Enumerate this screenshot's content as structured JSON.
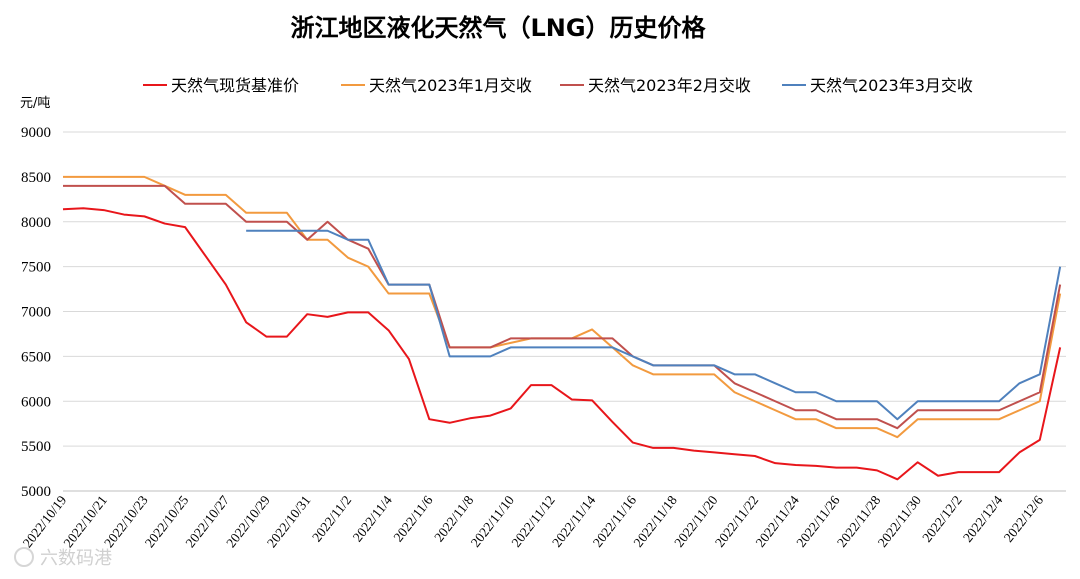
{
  "chart_data": {
    "type": "line",
    "title": "浙江地区液化天然气（LNG）历史价格",
    "unit_label": "元/吨",
    "ylim": [
      5000,
      9000
    ],
    "y_ticks": [
      5000,
      5500,
      6000,
      6500,
      7000,
      7500,
      8000,
      8500,
      9000
    ],
    "legend_position": "top",
    "grid": true,
    "x_tick_labels": [
      "2022/10/19",
      "2022/10/21",
      "2022/10/23",
      "2022/10/25",
      "2022/10/27",
      "2022/10/29",
      "2022/10/31",
      "2022/11/2",
      "2022/11/4",
      "2022/11/6",
      "2022/11/8",
      "2022/11/10",
      "2022/11/12",
      "2022/11/14",
      "2022/11/16",
      "2022/11/18",
      "2022/11/20",
      "2022/11/22",
      "2022/11/24",
      "2022/11/26",
      "2022/11/28",
      "2022/11/30",
      "2022/12/2",
      "2022/12/4",
      "2022/12/6"
    ],
    "x": [
      "2022/10/19",
      "2022/10/20",
      "2022/10/21",
      "2022/10/22",
      "2022/10/23",
      "2022/10/24",
      "2022/10/25",
      "2022/10/26",
      "2022/10/27",
      "2022/10/28",
      "2022/10/29",
      "2022/10/30",
      "2022/10/31",
      "2022/11/1",
      "2022/11/2",
      "2022/11/3",
      "2022/11/4",
      "2022/11/5",
      "2022/11/6",
      "2022/11/7",
      "2022/11/8",
      "2022/11/9",
      "2022/11/10",
      "2022/11/11",
      "2022/11/12",
      "2022/11/13",
      "2022/11/14",
      "2022/11/15",
      "2022/11/16",
      "2022/11/17",
      "2022/11/18",
      "2022/11/19",
      "2022/11/20",
      "2022/11/21",
      "2022/11/22",
      "2022/11/23",
      "2022/11/24",
      "2022/11/25",
      "2022/11/26",
      "2022/11/27",
      "2022/11/28",
      "2022/11/29",
      "2022/11/30",
      "2022/12/1",
      "2022/12/2",
      "2022/12/3",
      "2022/12/4",
      "2022/12/5",
      "2022/12/6",
      "2022/12/7"
    ],
    "series": [
      {
        "name": "天然气现货基准价",
        "color": "#e8161b",
        "values": [
          8140,
          8150,
          8130,
          8080,
          8060,
          7980,
          7940,
          7620,
          7300,
          6880,
          6720,
          6720,
          6970,
          6940,
          6990,
          6990,
          6790,
          6470,
          5800,
          5760,
          5810,
          5840,
          5920,
          6180,
          6180,
          6020,
          6010,
          5770,
          5540,
          5480,
          5480,
          5450,
          5430,
          5410,
          5390,
          5310,
          5290,
          5280,
          5260,
          5260,
          5230,
          5130,
          5320,
          5170,
          5210,
          5210,
          5210,
          5430,
          5570,
          6600
        ]
      },
      {
        "name": "天然气2023年1月交收",
        "color": "#f29a3f",
        "values": [
          8500,
          8500,
          8500,
          8500,
          8500,
          8400,
          8300,
          8300,
          8300,
          8100,
          8100,
          8100,
          7800,
          7800,
          7600,
          7500,
          7200,
          7200,
          7200,
          6600,
          6600,
          6600,
          6650,
          6700,
          6700,
          6700,
          6800,
          6600,
          6400,
          6300,
          6300,
          6300,
          6300,
          6100,
          6000,
          5900,
          5800,
          5800,
          5700,
          5700,
          5700,
          5600,
          5800,
          5800,
          5800,
          5800,
          5800,
          5900,
          6000,
          7200
        ]
      },
      {
        "name": "天然气2023年2月交收",
        "color": "#c0504d",
        "values": [
          8400,
          8400,
          8400,
          8400,
          8400,
          8400,
          8200,
          8200,
          8200,
          8000,
          8000,
          8000,
          7800,
          8000,
          7800,
          7700,
          7300,
          7300,
          7300,
          6600,
          6600,
          6600,
          6700,
          6700,
          6700,
          6700,
          6700,
          6700,
          6500,
          6400,
          6400,
          6400,
          6400,
          6200,
          6100,
          6000,
          5900,
          5900,
          5800,
          5800,
          5800,
          5700,
          5900,
          5900,
          5900,
          5900,
          5900,
          6000,
          6100,
          7300
        ]
      },
      {
        "name": "天然气2023年3月交收",
        "color": "#4f81bd",
        "values": [
          null,
          null,
          null,
          null,
          null,
          null,
          null,
          null,
          null,
          7900,
          7900,
          7900,
          7900,
          7900,
          7800,
          7800,
          7300,
          7300,
          7300,
          6500,
          6500,
          6500,
          6600,
          6600,
          6600,
          6600,
          6600,
          6600,
          6500,
          6400,
          6400,
          6400,
          6400,
          6300,
          6300,
          6200,
          6100,
          6100,
          6000,
          6000,
          6000,
          5800,
          6000,
          6000,
          6000,
          6000,
          6000,
          6200,
          6300,
          7500
        ]
      }
    ]
  },
  "watermark": "六数码港"
}
